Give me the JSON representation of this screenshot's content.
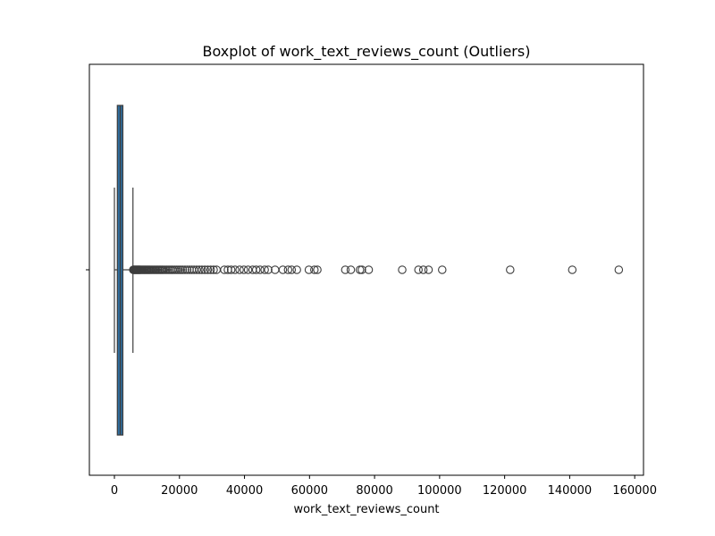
{
  "chart_data": {
    "type": "box",
    "title": "Boxplot of work_text_reviews_count (Outliers)",
    "xlabel": "work_text_reviews_count",
    "ylabel": "",
    "orientation": "horizontal",
    "xlim": [
      -7700,
      162700
    ],
    "xticks": [
      0,
      20000,
      40000,
      60000,
      80000,
      100000,
      120000,
      140000,
      160000
    ],
    "xtick_labels": [
      "0",
      "20000",
      "40000",
      "60000",
      "80000",
      "100000",
      "120000",
      "140000",
      "160000"
    ],
    "grid": false,
    "colors": {
      "box_fill": "#2f6c9c",
      "line": "#3d3d3d",
      "outlier_edge": "#3d3d3d"
    },
    "box": {
      "whisker_low": 0,
      "q1": 900,
      "median": 1800,
      "q3": 2600,
      "whisker_high": 5700
    },
    "outliers": [
      5800,
      6000,
      6200,
      6400,
      6600,
      6800,
      7000,
      7200,
      7400,
      7600,
      7800,
      8000,
      8300,
      8600,
      8900,
      9200,
      9500,
      9800,
      10100,
      10400,
      10700,
      11000,
      11400,
      11800,
      12200,
      12600,
      13000,
      13400,
      13800,
      14200,
      14600,
      15000,
      15500,
      16000,
      16500,
      17000,
      17500,
      18000,
      18600,
      19200,
      19800,
      20400,
      21000,
      21700,
      22400,
      23100,
      23800,
      24500,
      25300,
      26100,
      26900,
      27800,
      28700,
      29600,
      30500,
      31400,
      33800,
      34900,
      35900,
      37100,
      38500,
      39800,
      41100,
      42500,
      43600,
      44800,
      46200,
      47300,
      49400,
      51800,
      53400,
      54500,
      56100,
      59800,
      61500,
      62400,
      71000,
      72700,
      75500,
      76100,
      78200,
      88500,
      93500,
      95000,
      96600,
      100800,
      121700,
      140800,
      155100
    ]
  }
}
